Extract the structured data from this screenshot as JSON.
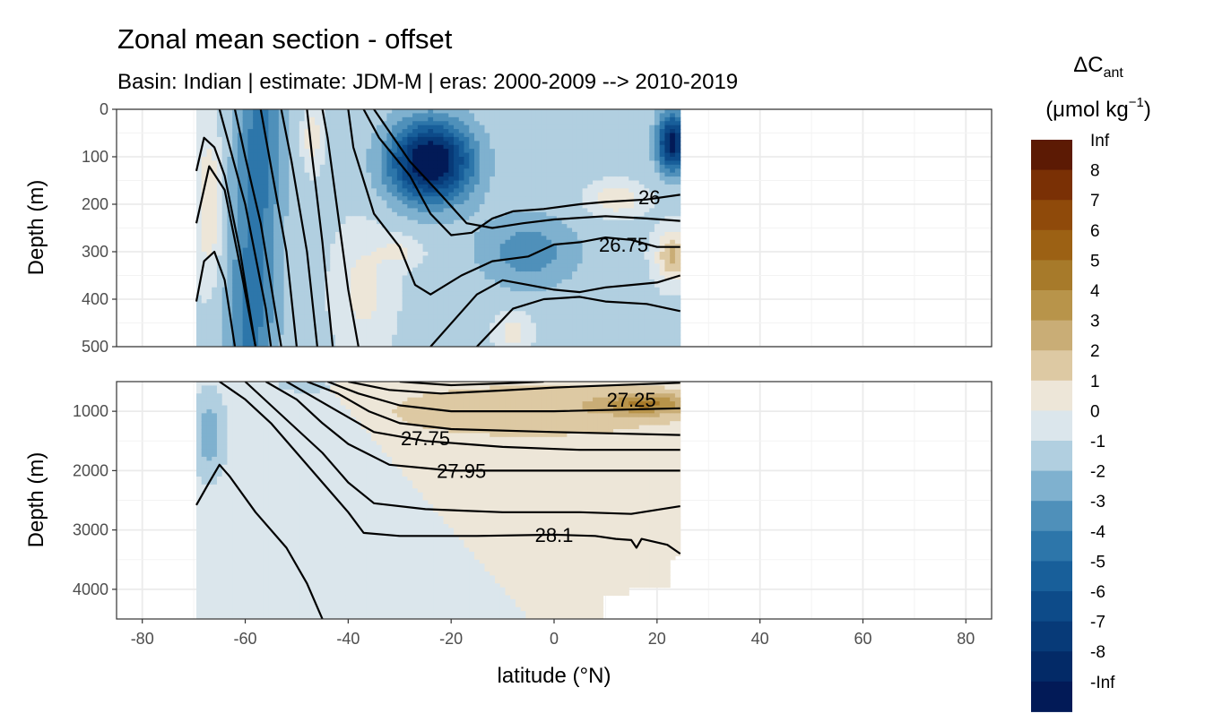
{
  "chart_data": {
    "type": "heatmap",
    "title": "Zonal mean section - offset",
    "subtitle": "Basin: Indian | estimate: JDM-M | eras: 2000-2009 --> 2010-2019",
    "xlabel": "latitude (°N)",
    "ylabel": "Depth (m)",
    "xlim": [
      -85,
      85
    ],
    "x_ticks": [
      -80,
      -60,
      -40,
      -20,
      0,
      20,
      40,
      60,
      80
    ],
    "data_extent_lat": [
      -69.5,
      24.5
    ],
    "panels": [
      {
        "name": "upper",
        "ylim": [
          0,
          500
        ],
        "y_ticks": [
          0,
          100,
          200,
          300,
          400,
          500
        ],
        "y_reversed": true
      },
      {
        "name": "lower",
        "ylim": [
          500,
          4500
        ],
        "y_ticks": [
          1000,
          2000,
          3000,
          4000
        ],
        "y_reversed": true
      }
    ],
    "legend": {
      "title_main": "ΔC",
      "title_sub": "ant",
      "unit_prefix": "(μmol kg",
      "unit_sup": "−1",
      "unit_suffix": ")",
      "labels": [
        "Inf",
        "8",
        "7",
        "6",
        "5",
        "4",
        "3",
        "2",
        "1",
        "0",
        "-1",
        "-2",
        "-3",
        "-4",
        "-5",
        "-6",
        "-7",
        "-8",
        "-Inf"
      ],
      "colors": [
        "#5c1a04",
        "#7a3005",
        "#8f4a0a",
        "#9c6114",
        "#a77a2a",
        "#b8944a",
        "#c9ad76",
        "#ddc9a3",
        "#ede6d8",
        "#dbe6ec",
        "#b1cfe0",
        "#7fb1cf",
        "#4f90ba",
        "#2d76aa",
        "#185f9a",
        "#0d4b89",
        "#073a78",
        "#032a67",
        "#021a57"
      ],
      "position": "right"
    },
    "grid": true,
    "isopycnal_labels": [
      {
        "panel": "upper",
        "text": "26",
        "lat": 18.5,
        "depth": 185
      },
      {
        "panel": "upper",
        "text": "26.75",
        "lat": 13.5,
        "depth": 285
      },
      {
        "panel": "lower",
        "text": "27.25",
        "lat": 15,
        "depth": 800
      },
      {
        "panel": "lower",
        "text": "27.75",
        "lat": -25,
        "depth": 1450
      },
      {
        "panel": "lower",
        "text": "27.95",
        "lat": -18,
        "depth": 2000
      },
      {
        "panel": "lower",
        "text": "28.1",
        "lat": 0,
        "depth": 3080
      }
    ]
  }
}
